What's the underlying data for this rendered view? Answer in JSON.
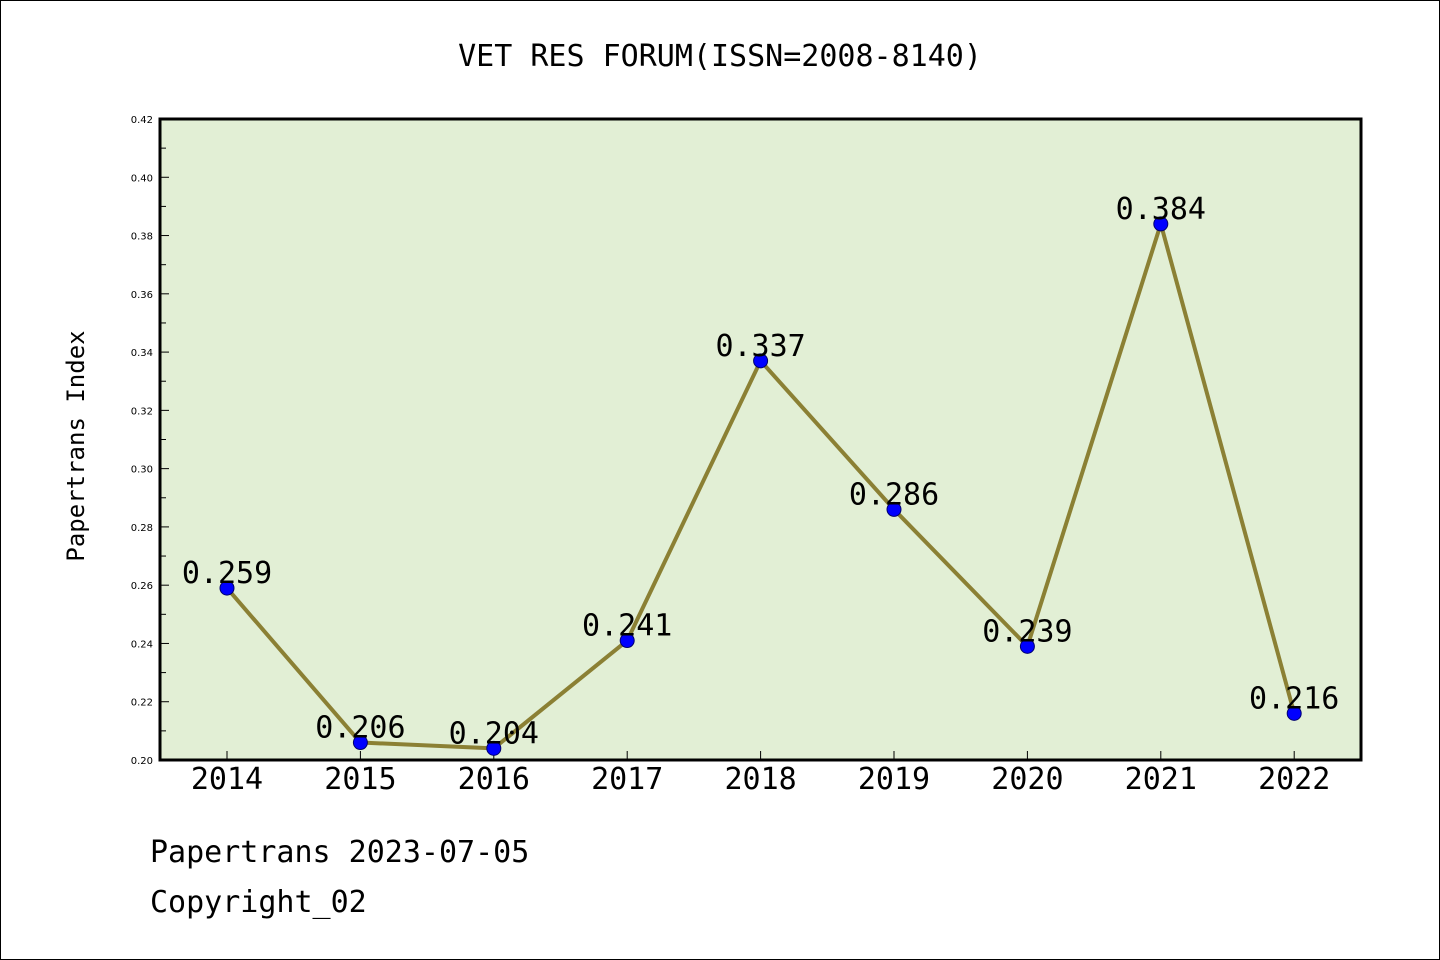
{
  "chart_data": {
    "type": "line",
    "title": "VET RES FORUM(ISSN=2008-8140)",
    "xlabel": "",
    "ylabel": "Papertrans Index",
    "categories": [
      "2014",
      "2015",
      "2016",
      "2017",
      "2018",
      "2019",
      "2020",
      "2021",
      "2022"
    ],
    "values": [
      0.259,
      0.206,
      0.204,
      0.241,
      0.337,
      0.286,
      0.239,
      0.384,
      0.216
    ],
    "data_labels": [
      "0.259",
      "0.206",
      "0.204",
      "0.241",
      "0.337",
      "0.286",
      "0.239",
      "0.384",
      "0.216"
    ],
    "ylim": [
      0.2,
      0.42
    ],
    "yticks": [
      "0.20",
      "0.22",
      "0.24",
      "0.26",
      "0.28",
      "0.30",
      "0.32",
      "0.34",
      "0.36",
      "0.38",
      "0.40",
      "0.42"
    ],
    "grid": false,
    "legend": "none",
    "colors": {
      "plot_background": "#e2efd5",
      "line": "#8b8034",
      "marker": "#0000ff"
    }
  },
  "footer": {
    "source": "Papertrans 2023-07-05",
    "copyright": "Copyright_02"
  }
}
